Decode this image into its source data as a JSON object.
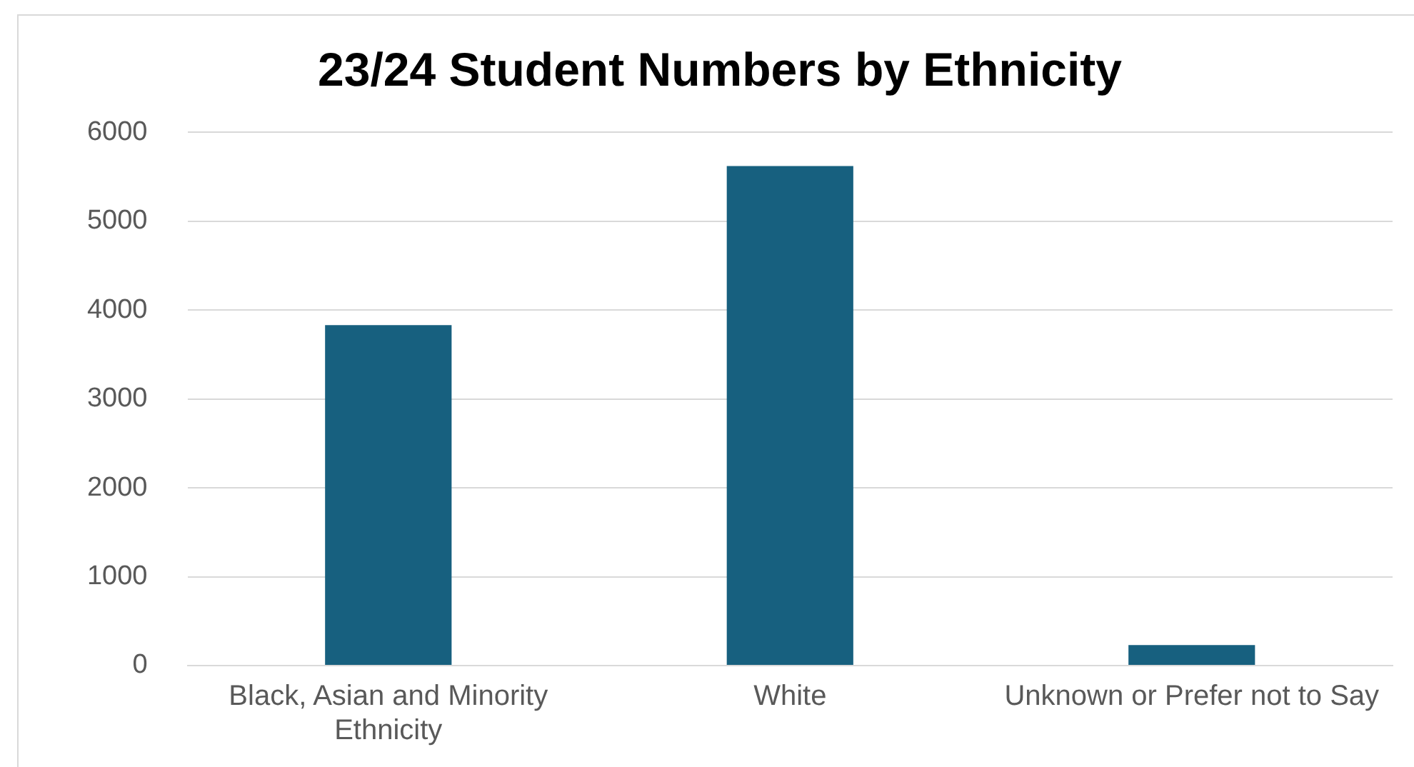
{
  "chart_data": {
    "type": "bar",
    "title": "23/24 Student Numbers by Ethnicity",
    "categories": [
      "Black, Asian and Minority Ethnicity",
      "White",
      "Unknown or Prefer not to Say"
    ],
    "values": [
      3830,
      5620,
      230
    ],
    "color": "#17607f",
    "ylim": [
      0,
      6000
    ],
    "yticks": [
      0,
      1000,
      2000,
      3000,
      4000,
      5000,
      6000
    ],
    "grid": "y",
    "legend": false
  }
}
